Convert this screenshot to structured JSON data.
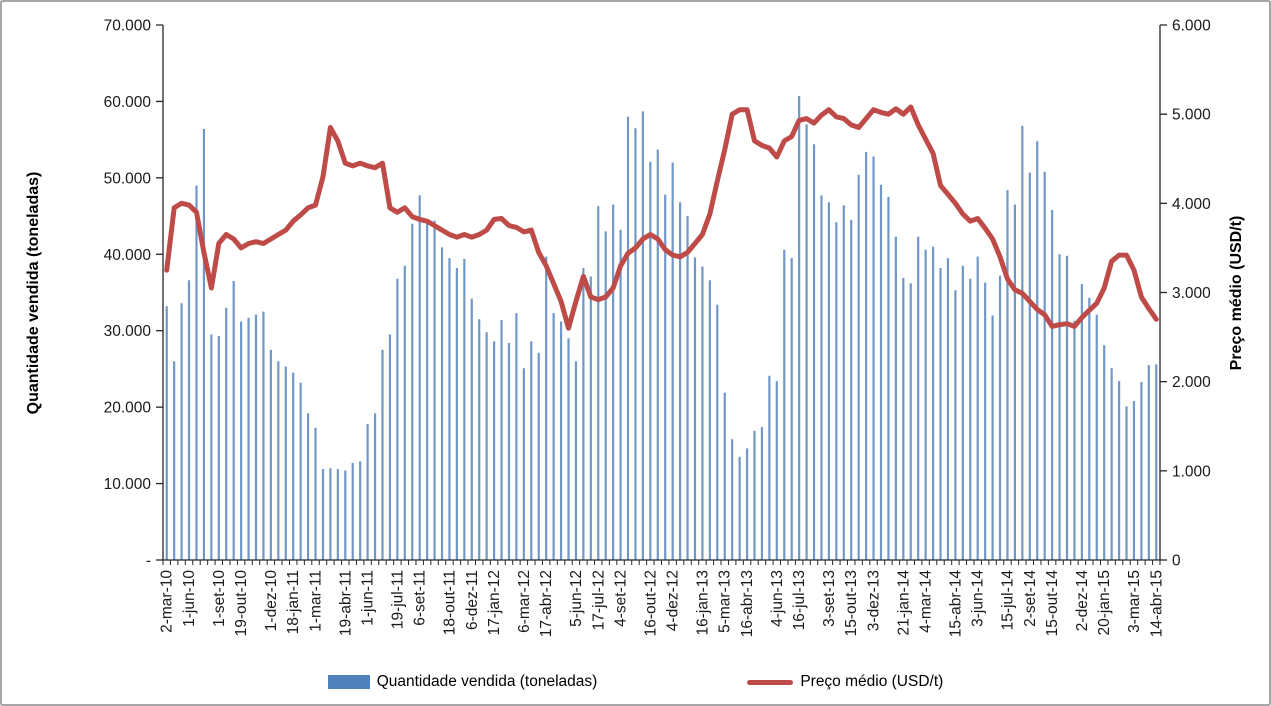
{
  "chart_data": {
    "type": "combo-bar-line",
    "n_points": 134,
    "series": [
      {
        "name": "Quantidade vendida (toneladas)",
        "type": "bar",
        "axis": "left",
        "color": "#4F81BD",
        "values": [
          33200,
          26000,
          33600,
          36600,
          49000,
          56400,
          29500,
          29300,
          33000,
          36500,
          31200,
          31700,
          32100,
          32500,
          27500,
          26000,
          25300,
          24500,
          23200,
          19200,
          17300,
          11900,
          12000,
          11900,
          11700,
          12700,
          12900,
          17800,
          19200,
          27500,
          29500,
          36800,
          38500,
          44000,
          47700,
          44200,
          44400,
          40900,
          39500,
          38200,
          39400,
          34200,
          31500,
          29800,
          28600,
          31400,
          28400,
          32300,
          25100,
          28600,
          27100,
          39700,
          32300,
          31200,
          29000,
          26000,
          38200,
          37100,
          46300,
          43000,
          46500,
          43200,
          58000,
          56500,
          58700,
          52100,
          53700,
          47800,
          52000,
          46800,
          45000,
          39600,
          38400,
          36600,
          33400,
          21900,
          15800,
          13500,
          14600,
          16900,
          17400,
          24100,
          23400,
          40600,
          39500,
          60700,
          57000,
          54400,
          47700,
          46800,
          44200,
          46400,
          44500,
          50400,
          53400,
          52800,
          49100,
          47500,
          42300,
          36900,
          36200,
          42300,
          40600,
          41000,
          38200,
          39500,
          35300,
          38500,
          36800,
          39700,
          36300,
          32000,
          37200,
          48400,
          46500,
          56800,
          50700,
          54800,
          50800,
          45800,
          40000,
          39800,
          31300,
          36100,
          34300,
          32100,
          28100,
          25100,
          23400,
          20100,
          20800,
          23300,
          25500,
          25600
        ]
      },
      {
        "name": "Preço médio (USD/t)",
        "type": "line",
        "axis": "right",
        "color": "#BE4B48",
        "values": [
          3250,
          3950,
          4000,
          3980,
          3900,
          3450,
          3050,
          3550,
          3650,
          3600,
          3500,
          3550,
          3570,
          3550,
          3600,
          3650,
          3700,
          3800,
          3870,
          3950,
          3980,
          4300,
          4850,
          4700,
          4450,
          4420,
          4450,
          4420,
          4400,
          4450,
          3950,
          3900,
          3950,
          3850,
          3820,
          3800,
          3750,
          3700,
          3650,
          3620,
          3650,
          3620,
          3650,
          3700,
          3820,
          3830,
          3750,
          3730,
          3680,
          3700,
          3450,
          3300,
          3100,
          2900,
          2600,
          2900,
          3180,
          2950,
          2920,
          2950,
          3050,
          3300,
          3440,
          3500,
          3600,
          3650,
          3600,
          3480,
          3420,
          3400,
          3450,
          3550,
          3650,
          3880,
          4250,
          4600,
          5000,
          5050,
          5050,
          4700,
          4650,
          4620,
          4520,
          4700,
          4750,
          4930,
          4950,
          4900,
          4990,
          5050,
          4970,
          4950,
          4880,
          4850,
          4950,
          5050,
          5020,
          5000,
          5060,
          5000,
          5080,
          4880,
          4720,
          4560,
          4200,
          4100,
          4000,
          3880,
          3800,
          3830,
          3720,
          3600,
          3400,
          3150,
          3030,
          2990,
          2900,
          2810,
          2750,
          2620,
          2640,
          2650,
          2620,
          2720,
          2800,
          2880,
          3050,
          3350,
          3420,
          3420,
          3250,
          2950,
          2820,
          2700
        ]
      }
    ],
    "left_axis": {
      "title": "Quantidade vendida (toneladas)",
      "min": 0,
      "max": 70000,
      "step": 10000,
      "tick_labels": [
        "70.000",
        "60.000",
        "50.000",
        "40.000",
        "30.000",
        "20.000",
        "10.000",
        "-"
      ]
    },
    "right_axis": {
      "title": "Preço médio (USD/t)",
      "min": 0,
      "max": 6000,
      "step": 1000,
      "tick_labels": [
        "6.000",
        "5.000",
        "4.000",
        "3.000",
        "2.000",
        "1.000",
        "0"
      ]
    },
    "x_axis": {
      "tick_labels": [
        "2-mar-10",
        "1-jun-10",
        "1-set-10",
        "19-out-10",
        "1-dez-10",
        "18-jan-11",
        "1-mar-11",
        "19-abr-11",
        "1-jun-11",
        "19-jul-11",
        "6-set-11",
        "18-out-11",
        "6-dez-11",
        "17-jan-12",
        "6-mar-12",
        "17-abr-12",
        "5-jun-12",
        "17-jul-12",
        "4-set-12",
        "16-out-12",
        "4-dez-12",
        "16-jan-13",
        "5-mar-13",
        "16-abr-13",
        "4-jun-13",
        "16-jul-13",
        "3-set-13",
        "15-out-13",
        "3-dez-13",
        "21-jan-14",
        "4-mar-14",
        "15-abr-14",
        "3-jun-14",
        "15-jul-14",
        "2-set-14",
        "15-out-14",
        "2-dez-14",
        "20-jan-15",
        "3-mar-15",
        "14-abr-15"
      ],
      "tick_label_indices": [
        0,
        3,
        7,
        10,
        14,
        17,
        20,
        24,
        27,
        31,
        34,
        38,
        41,
        44,
        48,
        51,
        55,
        58,
        61,
        65,
        68,
        72,
        75,
        78,
        82,
        85,
        89,
        92,
        95,
        99,
        102,
        106,
        109,
        113,
        116,
        119,
        123,
        126,
        130,
        133
      ]
    },
    "grid": "none",
    "legend_position": "bottom",
    "axis_color": "#262626",
    "tick_label_color": "#1a1a1a"
  },
  "legend": {
    "bar_label": "Quantidade vendida (toneladas)",
    "line_label": "Preço médio (USD/t)"
  }
}
